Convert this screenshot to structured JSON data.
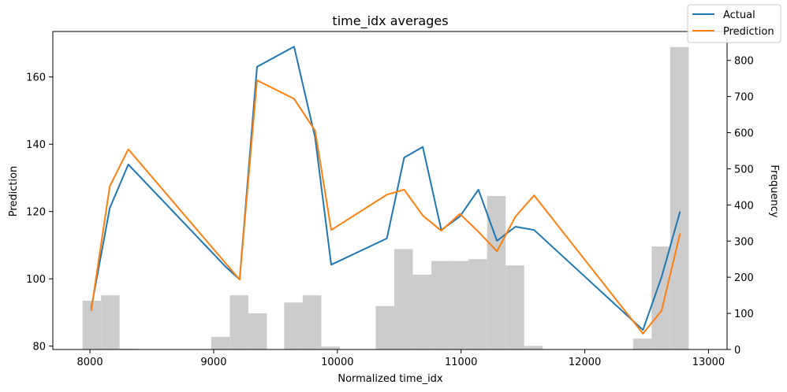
{
  "chart_data": {
    "type": "line",
    "title": "time_idx averages",
    "xlabel": "Normalized time_idx",
    "ylabel": "Prediction",
    "y2label": "Frequency",
    "xlim": [
      7700,
      13150
    ],
    "ylim": [
      79,
      173.5
    ],
    "y2lim": [
      0,
      880
    ],
    "xticks": [
      8000,
      9000,
      10000,
      11000,
      12000,
      13000
    ],
    "yticks": [
      80,
      100,
      120,
      140,
      160
    ],
    "y2ticks": [
      0,
      100,
      200,
      300,
      400,
      500,
      600,
      700,
      800
    ],
    "legend_position": "top-right",
    "series": [
      {
        "name": "Actual",
        "color": "#1f77b4",
        "x": [
          8010,
          8160,
          8310,
          9100,
          9210,
          9350,
          9650,
          9820,
          9950,
          10400,
          10540,
          10690,
          10840,
          10990,
          11140,
          11290,
          11440,
          11590,
          12470,
          12620,
          12770
        ],
        "y": [
          91.2,
          121,
          134,
          103.5,
          99.8,
          163,
          169,
          142,
          104.2,
          112,
          136,
          139.2,
          114.5,
          118.5,
          126.5,
          111.3,
          115.5,
          114.5,
          84.8,
          100.5,
          120
        ]
      },
      {
        "name": "Prediction",
        "color": "#ff7f0e",
        "x": [
          8010,
          8160,
          8310,
          9100,
          9210,
          9350,
          9650,
          9820,
          9950,
          10400,
          10540,
          10690,
          10840,
          10990,
          11140,
          11290,
          11440,
          11590,
          12470,
          12620,
          12770
        ],
        "y": [
          90.5,
          127.5,
          138.5,
          104.5,
          99.8,
          159,
          153.5,
          144,
          114.5,
          125,
          126.5,
          118.8,
          114.3,
          119.3,
          114,
          108.2,
          118.5,
          124.8,
          83.7,
          90.5,
          113.5
        ]
      }
    ],
    "histogram": {
      "color": "#cccccc",
      "bins": [
        {
          "x0": 7940,
          "x1": 8090,
          "count": 135
        },
        {
          "x0": 8090,
          "x1": 8240,
          "count": 150
        },
        {
          "x0": 8240,
          "x1": 8390,
          "count": 2
        },
        {
          "x0": 8980,
          "x1": 9130,
          "count": 35
        },
        {
          "x0": 9130,
          "x1": 9280,
          "count": 150
        },
        {
          "x0": 9280,
          "x1": 9430,
          "count": 100
        },
        {
          "x0": 9570,
          "x1": 9720,
          "count": 130
        },
        {
          "x0": 9720,
          "x1": 9870,
          "count": 150
        },
        {
          "x0": 9870,
          "x1": 10020,
          "count": 8
        },
        {
          "x0": 10310,
          "x1": 10460,
          "count": 120
        },
        {
          "x0": 10460,
          "x1": 10610,
          "count": 278
        },
        {
          "x0": 10610,
          "x1": 10760,
          "count": 207
        },
        {
          "x0": 10760,
          "x1": 10910,
          "count": 245
        },
        {
          "x0": 10910,
          "x1": 11060,
          "count": 245
        },
        {
          "x0": 11060,
          "x1": 11210,
          "count": 250
        },
        {
          "x0": 11210,
          "x1": 11360,
          "count": 425
        },
        {
          "x0": 11360,
          "x1": 11510,
          "count": 233
        },
        {
          "x0": 11510,
          "x1": 11660,
          "count": 10
        },
        {
          "x0": 12390,
          "x1": 12540,
          "count": 30
        },
        {
          "x0": 12540,
          "x1": 12690,
          "count": 285
        },
        {
          "x0": 12690,
          "x1": 12840,
          "count": 837
        }
      ]
    }
  }
}
